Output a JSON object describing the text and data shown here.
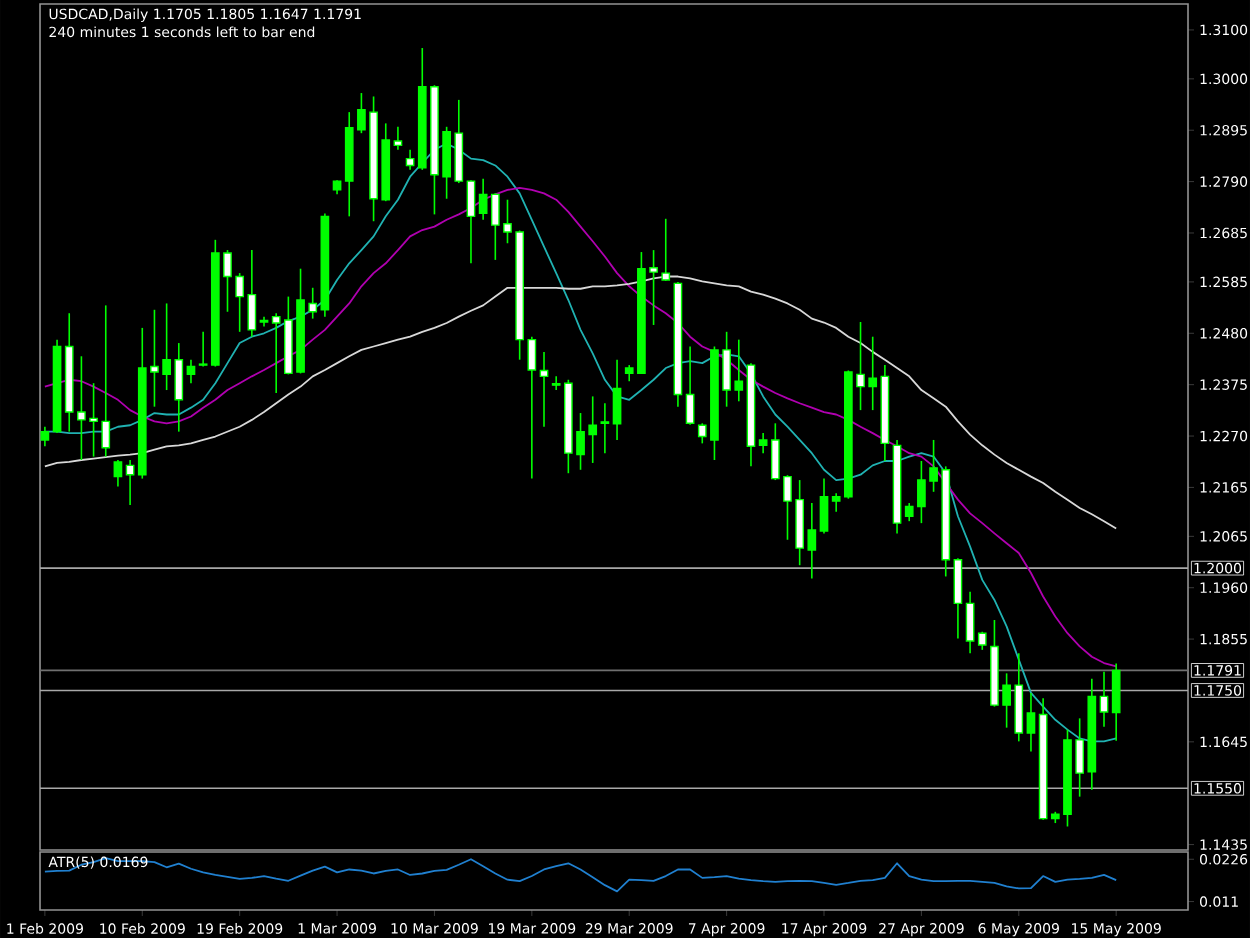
{
  "chart_data": [
    {
      "type": "candlestick",
      "title": "USDCAD,Daily 1.1705 1.1805 1.1647 1.1791",
      "subtitle": "240 minutes 1 seconds left to bar end",
      "categories": [
        null,
        null,
        null,
        null,
        null,
        null,
        null,
        null,
        null,
        null,
        null,
        null,
        null,
        null,
        null,
        null,
        null,
        null,
        null,
        null,
        null,
        null,
        null,
        null,
        null,
        null,
        null,
        null,
        null,
        null,
        null,
        null,
        null,
        null,
        null,
        null,
        null,
        null,
        null,
        null,
        null,
        null,
        null,
        null,
        null,
        null,
        null,
        null,
        null,
        null,
        null,
        null,
        null,
        null,
        null,
        null,
        null,
        null,
        null,
        null,
        null,
        null,
        null,
        null,
        null,
        null,
        null,
        null,
        null,
        null,
        null,
        null,
        null,
        null,
        null,
        null,
        null,
        null,
        null,
        null,
        null,
        null,
        null,
        null,
        null,
        null,
        null,
        null,
        null
      ],
      "color": "#00ff00",
      "ohlc": [
        [
          1.2262,
          1.2289,
          1.2249,
          1.2279
        ],
        [
          1.2279,
          1.2467,
          1.2276,
          1.2453
        ],
        [
          1.2453,
          1.2521,
          1.2279,
          1.2319
        ],
        [
          1.2319,
          1.2433,
          1.2221,
          1.2303
        ],
        [
          1.2306,
          1.2378,
          1.2228,
          1.23
        ],
        [
          1.23,
          1.2537,
          1.2228,
          1.2246
        ],
        [
          1.2187,
          1.2221,
          1.2167,
          1.2217
        ],
        [
          1.221,
          1.2221,
          1.2129,
          1.2191
        ],
        [
          1.2191,
          1.2491,
          1.2183,
          1.2409
        ],
        [
          1.2412,
          1.2528,
          1.233,
          1.2401
        ],
        [
          1.2396,
          1.2541,
          1.2364,
          1.2426
        ],
        [
          1.2426,
          1.246,
          1.2279,
          1.2344
        ],
        [
          1.2396,
          1.2426,
          1.2378,
          1.2412
        ],
        [
          1.2415,
          1.2483,
          1.2412,
          1.2417
        ],
        [
          1.2415,
          1.2671,
          1.2412,
          1.2644
        ],
        [
          1.2644,
          1.265,
          1.2524,
          1.2596
        ],
        [
          1.2596,
          1.2603,
          1.2483,
          1.2555
        ],
        [
          1.2559,
          1.265,
          1.2473,
          1.2487
        ],
        [
          1.2506,
          1.2514,
          1.2494,
          1.2503
        ],
        [
          1.2514,
          1.2521,
          1.2358,
          1.2501
        ],
        [
          1.2507,
          1.2555,
          1.2396,
          1.2398
        ],
        [
          1.2401,
          1.2612,
          1.2398,
          1.2548
        ],
        [
          1.2541,
          1.2573,
          1.251,
          1.2524
        ],
        [
          1.2528,
          1.2725,
          1.2514,
          1.2719
        ],
        [
          1.2773,
          1.2793,
          1.2764,
          1.2791
        ],
        [
          1.2791,
          1.2932,
          1.2719,
          1.29
        ],
        [
          1.2896,
          1.2971,
          1.2889,
          1.2937
        ],
        [
          1.2932,
          1.2964,
          1.2709,
          1.2755
        ],
        [
          1.2753,
          1.2909,
          1.275,
          1.2875
        ],
        [
          1.2873,
          1.2902,
          1.2855,
          1.2864
        ],
        [
          1.2837,
          1.2855,
          1.2814,
          1.2823
        ],
        [
          1.2818,
          1.3063,
          1.2814,
          1.2984
        ],
        [
          1.2984,
          1.2987,
          1.2723,
          1.2804
        ],
        [
          1.28,
          1.2902,
          1.2755,
          1.2892
        ],
        [
          1.2889,
          1.2957,
          1.2787,
          1.2791
        ],
        [
          1.2791,
          1.2793,
          1.2623,
          1.2719
        ],
        [
          1.2725,
          1.2796,
          1.2712,
          1.2764
        ],
        [
          1.2764,
          1.2766,
          1.263,
          1.2701
        ],
        [
          1.2704,
          1.2753,
          1.2664,
          1.2687
        ],
        [
          1.2687,
          1.269,
          1.2426,
          1.2467
        ],
        [
          1.2467,
          1.2473,
          1.2183,
          1.2405
        ],
        [
          1.2404,
          1.2442,
          1.2289,
          1.2392
        ],
        [
          1.2377,
          1.2392,
          1.2364,
          1.2374
        ],
        [
          1.2378,
          1.2385,
          1.2194,
          1.2235
        ],
        [
          1.2232,
          1.2317,
          1.2201,
          1.2279
        ],
        [
          1.2273,
          1.2351,
          1.2215,
          1.2292
        ],
        [
          1.2296,
          1.2337,
          1.2235,
          1.2299
        ],
        [
          1.2295,
          1.2426,
          1.2262,
          1.2367
        ],
        [
          1.2398,
          1.2415,
          1.2382,
          1.2409
        ],
        [
          1.2398,
          1.2646,
          1.2398,
          1.2612
        ],
        [
          1.2614,
          1.265,
          1.2497,
          1.2605
        ],
        [
          1.2603,
          1.2714,
          1.2587,
          1.2589
        ],
        [
          1.2582,
          1.2585,
          1.233,
          1.2355
        ],
        [
          1.2355,
          1.2453,
          1.2293,
          1.2296
        ],
        [
          1.2292,
          1.2296,
          1.2255,
          1.2269
        ],
        [
          1.2262,
          1.2453,
          1.2221,
          1.2446
        ],
        [
          1.2446,
          1.2483,
          1.233,
          1.2364
        ],
        [
          1.2364,
          1.2467,
          1.2341,
          1.2382
        ],
        [
          1.2415,
          1.2419,
          1.2208,
          1.2249
        ],
        [
          1.2251,
          1.2276,
          1.2235,
          1.2262
        ],
        [
          1.2262,
          1.2296,
          1.218,
          1.2183
        ],
        [
          1.2187,
          1.219,
          1.2058,
          1.2137
        ],
        [
          1.214,
          1.218,
          1.2006,
          1.2041
        ],
        [
          1.2037,
          1.2133,
          1.1979,
          1.2078
        ],
        [
          1.2076,
          1.2183,
          1.2071,
          1.2146
        ],
        [
          1.2137,
          1.2153,
          1.2115,
          1.2146
        ],
        [
          1.2146,
          1.2404,
          1.2142,
          1.2401
        ],
        [
          1.2396,
          1.2503,
          1.2323,
          1.2371
        ],
        [
          1.2371,
          1.2473,
          1.2323,
          1.2388
        ],
        [
          1.2392,
          1.2415,
          1.2219,
          1.2255
        ],
        [
          1.2251,
          1.2262,
          1.2071,
          1.2092
        ],
        [
          1.2106,
          1.2133,
          1.2096,
          1.2126
        ],
        [
          1.2126,
          1.2219,
          1.2092,
          1.218
        ],
        [
          1.2178,
          1.2262,
          1.2156,
          1.2205
        ],
        [
          1.2201,
          1.2208,
          1.1983,
          1.2017
        ],
        [
          1.2017,
          1.202,
          1.1856,
          1.1928
        ],
        [
          1.1928,
          1.1952,
          1.1826,
          1.1851
        ],
        [
          1.1867,
          1.187,
          1.1833,
          1.1843
        ],
        [
          1.184,
          1.1894,
          1.1717,
          1.172
        ],
        [
          1.172,
          1.1785,
          1.1674,
          1.1761
        ],
        [
          1.1761,
          1.1826,
          1.1646,
          1.1663
        ],
        [
          1.1663,
          1.1745,
          1.1625,
          1.1704
        ],
        [
          1.1701,
          1.1734,
          1.1486,
          1.1488
        ],
        [
          1.1488,
          1.1502,
          1.1479,
          1.1497
        ],
        [
          1.1497,
          1.167,
          1.1472,
          1.1649
        ],
        [
          1.1649,
          1.1693,
          1.1533,
          1.1581
        ],
        [
          1.1584,
          1.1774,
          1.1547,
          1.1738
        ],
        [
          1.1738,
          1.1788,
          1.1676,
          1.1706
        ],
        [
          1.1705,
          1.1805,
          1.1647,
          1.1791
        ]
      ],
      "series": [
        {
          "type": "line",
          "color": "#20b2b2",
          "values": [
            1.2279,
            1.2279,
            1.2276,
            1.2276,
            1.2279,
            1.2279,
            1.2289,
            1.2292,
            1.2303,
            1.2317,
            1.2314,
            1.2314,
            1.2328,
            1.2344,
            1.2378,
            1.2419,
            1.246,
            1.2473,
            1.248,
            1.2491,
            1.2505,
            1.2514,
            1.2528,
            1.2548,
            1.2589,
            1.2623,
            1.265,
            1.2678,
            1.2719,
            1.2753,
            1.28,
            1.2828,
            1.2855,
            1.2868,
            1.2855,
            1.2837,
            1.2834,
            1.2823,
            1.28,
            1.2766,
            1.2712,
            1.2657,
            1.2603,
            1.2548,
            1.2487,
            1.2439,
            1.2385,
            1.2351,
            1.2344,
            1.2364,
            1.2385,
            1.2409,
            1.2419,
            1.2423,
            1.2419,
            1.2433,
            1.2437,
            1.2433,
            1.2398,
            1.2351,
            1.2314,
            1.2289,
            1.2262,
            1.2235,
            1.2201,
            1.218,
            1.2183,
            1.2191,
            1.221,
            1.2219,
            1.2219,
            1.2228,
            1.2235,
            1.2228,
            1.2194,
            1.2106,
            1.2044,
            1.1976,
            1.1935,
            1.1881,
            1.1813,
            1.1745,
            1.1717,
            1.169,
            1.167,
            1.1652,
            1.1646,
            1.1646,
            1.1652
          ]
        },
        {
          "type": "line",
          "color": "#b000b0",
          "values": [
            1.2371,
            1.2378,
            1.2385,
            1.2382,
            1.2371,
            1.2358,
            1.2344,
            1.2323,
            1.231,
            1.23,
            1.2296,
            1.23,
            1.231,
            1.2328,
            1.2344,
            1.2364,
            1.2378,
            1.2392,
            1.2405,
            1.2419,
            1.2433,
            1.2446,
            1.2467,
            1.2487,
            1.2514,
            1.2541,
            1.2576,
            1.2603,
            1.2623,
            1.265,
            1.2678,
            1.2691,
            1.2698,
            1.2712,
            1.2723,
            1.2736,
            1.2753,
            1.2764,
            1.2773,
            1.2777,
            1.2773,
            1.2766,
            1.2753,
            1.2728,
            1.2698,
            1.2668,
            1.2637,
            1.2603,
            1.2576,
            1.2555,
            1.2537,
            1.2521,
            1.2501,
            1.2473,
            1.2453,
            1.2442,
            1.2426,
            1.2405,
            1.2385,
            1.2371,
            1.2358,
            1.2347,
            1.2337,
            1.2328,
            1.2319,
            1.2314,
            1.2303,
            1.2289,
            1.2276,
            1.2262,
            1.2249,
            1.2235,
            1.2228,
            1.2208,
            1.2174,
            1.214,
            1.2112,
            1.2092,
            1.2071,
            1.2051,
            1.2031,
            1.199,
            1.1942,
            1.1901,
            1.1867,
            1.184,
            1.1819,
            1.1806,
            1.1799
          ]
        },
        {
          "type": "line",
          "color": "#d8d8d8",
          "values": [
            1.2208,
            1.2215,
            1.2217,
            1.2221,
            1.2224,
            1.2227,
            1.223,
            1.2232,
            1.2235,
            1.2242,
            1.2249,
            1.2251,
            1.2255,
            1.2262,
            1.2269,
            1.2279,
            1.2289,
            1.2303,
            1.2319,
            1.2337,
            1.2355,
            1.2371,
            1.2392,
            1.2405,
            1.2419,
            1.2433,
            1.2446,
            1.2453,
            1.246,
            1.2467,
            1.2473,
            1.2483,
            1.2491,
            1.2501,
            1.2514,
            1.2526,
            1.2537,
            1.2555,
            1.2573,
            1.2573,
            1.2573,
            1.2573,
            1.2573,
            1.2571,
            1.2571,
            1.2576,
            1.2576,
            1.2578,
            1.2581,
            1.2586,
            1.2592,
            1.2596,
            1.2596,
            1.2592,
            1.2586,
            1.2582,
            1.2578,
            1.2576,
            1.2565,
            1.2559,
            1.2551,
            1.2541,
            1.2528,
            1.251,
            1.2502,
            1.2491,
            1.2473,
            1.246,
            1.2442,
            1.2426,
            1.2409,
            1.2392,
            1.2364,
            1.2347,
            1.233,
            1.23,
            1.2273,
            1.2251,
            1.2232,
            1.2215,
            1.2201,
            1.2187,
            1.2174,
            1.2156,
            1.214,
            1.2123,
            1.211,
            1.2096,
            1.2081
          ]
        }
      ],
      "ylim": [
        1.1424,
        1.3153
      ],
      "yticks": [
        {
          "value": 1.31,
          "label": "1.3100"
        },
        {
          "value": 1.3,
          "label": "1.3000"
        },
        {
          "value": 1.2895,
          "label": "1.2895"
        },
        {
          "value": 1.279,
          "label": "1.2790"
        },
        {
          "value": 1.2685,
          "label": "1.2685"
        },
        {
          "value": 1.2585,
          "label": "1.2585"
        },
        {
          "value": 1.248,
          "label": "1.2480"
        },
        {
          "value": 1.2375,
          "label": "1.2375"
        },
        {
          "value": 1.227,
          "label": "1.2270"
        },
        {
          "value": 1.2165,
          "label": "1.2165"
        },
        {
          "value": 1.2065,
          "label": "1.2065"
        },
        {
          "value": 1.196,
          "label": "1.1960"
        },
        {
          "value": 1.1855,
          "label": "1.1855"
        },
        {
          "value": 1.1645,
          "label": "1.1645"
        },
        {
          "value": 1.1435,
          "label": "1.1435"
        }
      ],
      "ref_lines": [
        {
          "axis": "y",
          "value": 1.2,
          "label": "1.2000",
          "color": "#a8a8a8"
        },
        {
          "axis": "y",
          "value": 1.1791,
          "label": "1.1791",
          "color": "#707070"
        },
        {
          "axis": "y",
          "value": 1.175,
          "label": "1.1750",
          "color": "#a8a8a8"
        },
        {
          "axis": "y",
          "value": 1.155,
          "label": "1.1550",
          "color": "#a8a8a8"
        }
      ]
    },
    {
      "type": "line",
      "title": "ATR(5) 0.0169",
      "categories": [
        "1 Feb 2009",
        null,
        null,
        null,
        null,
        null,
        null,
        null,
        "10 Feb 2009",
        null,
        null,
        null,
        null,
        null,
        null,
        null,
        "19 Feb 2009",
        null,
        null,
        null,
        null,
        null,
        null,
        null,
        "1 Mar 2009",
        null,
        null,
        null,
        null,
        null,
        null,
        null,
        "10 Mar 2009",
        null,
        null,
        null,
        null,
        null,
        null,
        null,
        "19 Mar 2009",
        null,
        null,
        null,
        null,
        null,
        null,
        null,
        "29 Mar 2009",
        null,
        null,
        null,
        null,
        null,
        null,
        null,
        "7 Apr 2009",
        null,
        null,
        null,
        null,
        null,
        null,
        null,
        "17 Apr 2009",
        null,
        null,
        null,
        null,
        null,
        null,
        null,
        "27 Apr 2009",
        null,
        null,
        null,
        null,
        null,
        null,
        null,
        "6 May 2009",
        null,
        null,
        null,
        null,
        null,
        null,
        null,
        "15 May 2009"
      ],
      "series": [
        {
          "color": "#2080d0",
          "values": [
            0.0192,
            0.0194,
            0.0195,
            0.0211,
            0.0218,
            0.0229,
            0.0221,
            0.0221,
            0.0221,
            0.0218,
            0.0204,
            0.0214,
            0.02,
            0.019,
            0.0183,
            0.0178,
            0.0172,
            0.0175,
            0.018,
            0.0173,
            0.0167,
            0.0181,
            0.0195,
            0.0206,
            0.019,
            0.0198,
            0.0195,
            0.0187,
            0.0194,
            0.0198,
            0.0183,
            0.0187,
            0.0194,
            0.0197,
            0.0211,
            0.0226,
            0.0207,
            0.0187,
            0.017,
            0.0166,
            0.018,
            0.0198,
            0.0207,
            0.0215,
            0.0198,
            0.0177,
            0.0155,
            0.0138,
            0.017,
            0.0169,
            0.0167,
            0.018,
            0.0198,
            0.0198,
            0.0175,
            0.0177,
            0.018,
            0.0173,
            0.0169,
            0.0166,
            0.0164,
            0.0166,
            0.0167,
            0.0166,
            0.0161,
            0.0156,
            0.0161,
            0.0167,
            0.0169,
            0.0175,
            0.0215,
            0.018,
            0.017,
            0.0166,
            0.0166,
            0.0167,
            0.0167,
            0.0164,
            0.0161,
            0.0152,
            0.0146,
            0.0147,
            0.018,
            0.0164,
            0.017,
            0.0172,
            0.0175,
            0.0183,
            0.0169
          ]
        }
      ],
      "ylim": [
        0.0087,
        0.0246
      ],
      "yticks": [
        0.0226,
        0.011
      ]
    }
  ]
}
